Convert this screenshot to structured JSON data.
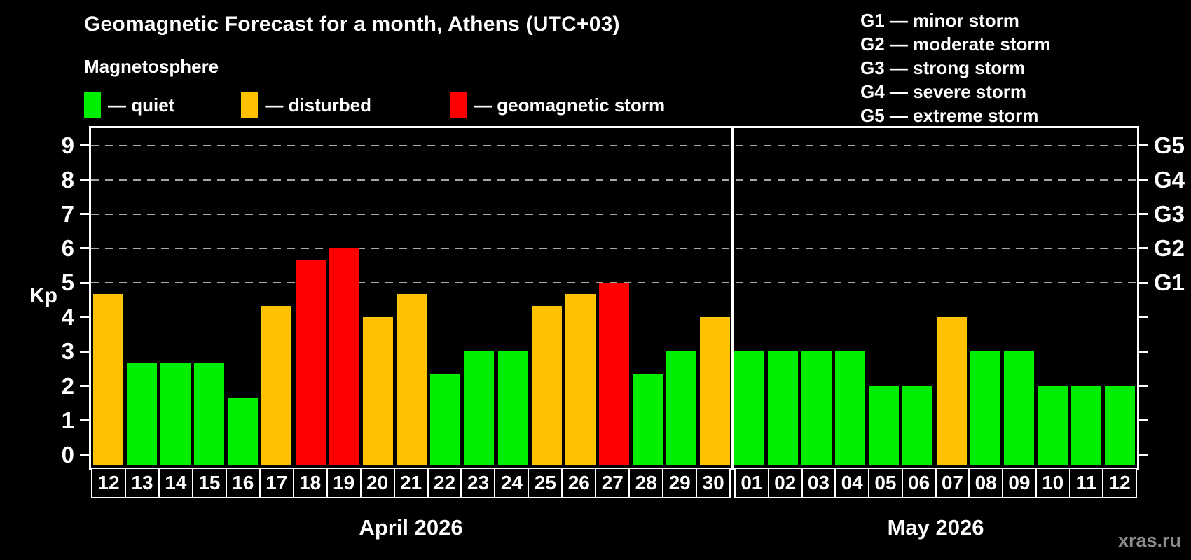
{
  "title": "Geomagnetic Forecast for a month, Athens (UTC+03)",
  "legend": {
    "heading": "Magnetosphere",
    "items": [
      {
        "key": "quiet",
        "label": "— quiet",
        "color": "#00ee00"
      },
      {
        "key": "disturbed",
        "label": "— disturbed",
        "color": "#ffc200"
      },
      {
        "key": "storm",
        "label": "— geomagnetic storm",
        "color": "#ff0000"
      }
    ]
  },
  "g_legend": [
    "G1 — minor storm",
    "G2 — moderate storm",
    "G3 — strong storm",
    "G4 — severe storm",
    "G5 — extreme storm"
  ],
  "watermark": "xras.ru",
  "chart_data": {
    "type": "bar",
    "title": "Geomagnetic Forecast for a month, Athens (UTC+03)",
    "ylabel": "Kp",
    "ylim": [
      -0.37,
      9.5
    ],
    "yticks": [
      0,
      1,
      2,
      3,
      4,
      5,
      6,
      7,
      8,
      9
    ],
    "gridlines_at": [
      5,
      6,
      7,
      8,
      9
    ],
    "grid": "dashed",
    "legend_position": "top",
    "right_axis_labels": [
      {
        "kp": 5,
        "label": "G1"
      },
      {
        "kp": 6,
        "label": "G2"
      },
      {
        "kp": 7,
        "label": "G3"
      },
      {
        "kp": 8,
        "label": "G4"
      },
      {
        "kp": 9,
        "label": "G5"
      }
    ],
    "status_colors": {
      "quiet": "#00ee00",
      "disturbed": "#ffc200",
      "storm": "#ff0000"
    },
    "months": [
      {
        "name": "April 2026",
        "days": [
          {
            "day": "12",
            "kp": 4.67,
            "status": "disturbed"
          },
          {
            "day": "13",
            "kp": 2.67,
            "status": "quiet"
          },
          {
            "day": "14",
            "kp": 2.67,
            "status": "quiet"
          },
          {
            "day": "15",
            "kp": 2.67,
            "status": "quiet"
          },
          {
            "day": "16",
            "kp": 1.67,
            "status": "quiet"
          },
          {
            "day": "17",
            "kp": 4.33,
            "status": "disturbed"
          },
          {
            "day": "18",
            "kp": 5.67,
            "status": "storm"
          },
          {
            "day": "19",
            "kp": 6.0,
            "status": "storm"
          },
          {
            "day": "20",
            "kp": 4.0,
            "status": "disturbed"
          },
          {
            "day": "21",
            "kp": 4.67,
            "status": "disturbed"
          },
          {
            "day": "22",
            "kp": 2.33,
            "status": "quiet"
          },
          {
            "day": "23",
            "kp": 3.0,
            "status": "quiet"
          },
          {
            "day": "24",
            "kp": 3.0,
            "status": "quiet"
          },
          {
            "day": "25",
            "kp": 4.33,
            "status": "disturbed"
          },
          {
            "day": "26",
            "kp": 4.67,
            "status": "disturbed"
          },
          {
            "day": "27",
            "kp": 5.0,
            "status": "storm"
          },
          {
            "day": "28",
            "kp": 2.33,
            "status": "quiet"
          },
          {
            "day": "29",
            "kp": 3.0,
            "status": "quiet"
          },
          {
            "day": "30",
            "kp": 4.0,
            "status": "disturbed"
          }
        ]
      },
      {
        "name": "May 2026",
        "days": [
          {
            "day": "01",
            "kp": 3.0,
            "status": "quiet"
          },
          {
            "day": "02",
            "kp": 3.0,
            "status": "quiet"
          },
          {
            "day": "03",
            "kp": 3.0,
            "status": "quiet"
          },
          {
            "day": "04",
            "kp": 3.0,
            "status": "quiet"
          },
          {
            "day": "05",
            "kp": 2.0,
            "status": "quiet"
          },
          {
            "day": "06",
            "kp": 2.0,
            "status": "quiet"
          },
          {
            "day": "07",
            "kp": 4.0,
            "status": "disturbed"
          },
          {
            "day": "08",
            "kp": 3.0,
            "status": "quiet"
          },
          {
            "day": "09",
            "kp": 3.0,
            "status": "quiet"
          },
          {
            "day": "10",
            "kp": 2.0,
            "status": "quiet"
          },
          {
            "day": "11",
            "kp": 2.0,
            "status": "quiet"
          },
          {
            "day": "12",
            "kp": 2.0,
            "status": "quiet"
          }
        ]
      }
    ]
  }
}
